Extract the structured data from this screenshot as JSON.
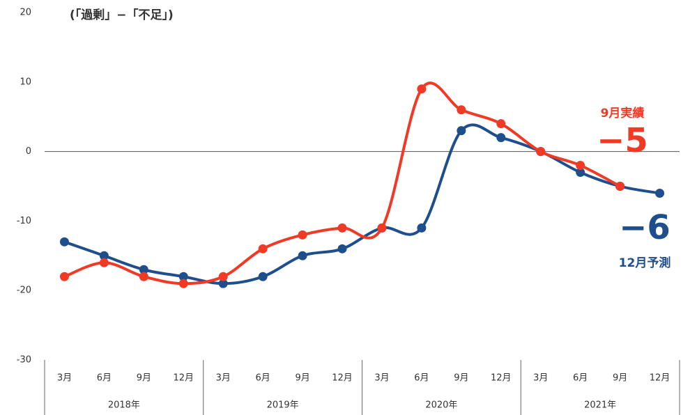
{
  "chart_data": {
    "type": "line",
    "title": "(「過剰」−「不足」)",
    "categories": [
      "3月",
      "6月",
      "9月",
      "12月",
      "3月",
      "6月",
      "9月",
      "12月",
      "3月",
      "6月",
      "9月",
      "12月",
      "3月",
      "6月",
      "9月",
      "12月"
    ],
    "year_groups": [
      "2018年",
      "2019年",
      "2020年",
      "2021年"
    ],
    "series": [
      {
        "color": "#1f4e8c",
        "values": [
          -13,
          -15,
          -17,
          -18,
          -19,
          -18,
          -15,
          -14,
          -11,
          -11,
          3,
          2,
          0,
          -3,
          -5,
          -6
        ]
      },
      {
        "color": "#f03a25",
        "values": [
          -18,
          -16,
          -18,
          -19,
          -18,
          -14,
          -12,
          -11,
          -11,
          9,
          6,
          4,
          0,
          -2,
          -5,
          null
        ]
      }
    ],
    "annotations": [
      {
        "text": "9月実績",
        "color": "#f03a25"
      },
      {
        "text": "−5",
        "color": "#f03a25"
      },
      {
        "text": "−6",
        "color": "#1f4e8c"
      },
      {
        "text": "12月予測",
        "color": "#1f4e8c"
      }
    ],
    "ylim": [
      -30,
      20
    ],
    "yticks": [
      -30,
      -20,
      -10,
      0,
      10,
      20
    ],
    "zero_line": true
  }
}
